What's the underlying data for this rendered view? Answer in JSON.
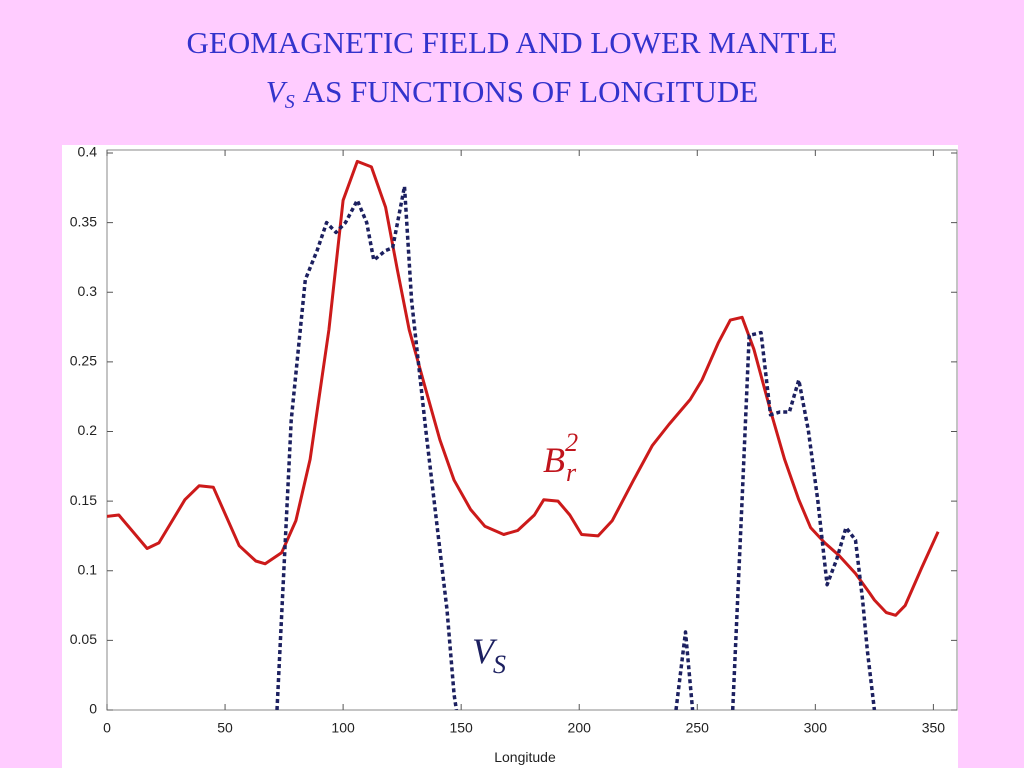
{
  "title_line1": "GEOMAGNETIC FIELD AND LOWER MANTLE",
  "title_line2": {
    "symbol": "V",
    "subscript": "S",
    "text": "AS FUNCTIONS OF LONGITUDE"
  },
  "chart_data": {
    "type": "line",
    "x_label": "Longitude",
    "xlim": [
      0,
      360
    ],
    "xticks": [
      0,
      50,
      100,
      150,
      200,
      250,
      300,
      350
    ],
    "ylim": [
      0,
      0.4
    ],
    "yticks": [
      0,
      0.05,
      0.1,
      0.15,
      0.2,
      0.25,
      0.3,
      0.35,
      0.4
    ],
    "annotations": [
      {
        "symbol": "B",
        "subscript": "r",
        "superscript": "2",
        "color": "#c0141c"
      },
      {
        "symbol": "V",
        "subscript": "S",
        "color": "#1c2060"
      }
    ],
    "series": [
      {
        "style": "solid",
        "color": "#cc1a1a",
        "x": [
          0,
          5,
          17,
          22,
          33,
          39,
          45,
          56,
          63,
          67,
          74,
          80,
          86,
          94,
          100,
          106,
          112,
          118,
          123,
          128,
          135,
          141,
          147,
          154,
          160,
          168,
          174,
          181,
          185,
          191,
          196,
          201,
          208,
          214,
          223,
          231,
          238,
          247,
          252,
          259,
          264,
          269,
          274,
          281,
          287,
          293,
          298,
          304,
          310,
          317,
          323,
          325,
          330,
          334,
          338,
          345,
          352
        ],
        "values": [
          0.139,
          0.14,
          0.116,
          0.12,
          0.151,
          0.161,
          0.16,
          0.118,
          0.107,
          0.105,
          0.113,
          0.136,
          0.18,
          0.273,
          0.366,
          0.394,
          0.39,
          0.361,
          0.316,
          0.273,
          0.23,
          0.194,
          0.165,
          0.144,
          0.132,
          0.126,
          0.129,
          0.14,
          0.151,
          0.15,
          0.14,
          0.126,
          0.125,
          0.136,
          0.165,
          0.19,
          0.205,
          0.223,
          0.237,
          0.264,
          0.28,
          0.282,
          0.259,
          0.215,
          0.18,
          0.151,
          0.131,
          0.12,
          0.111,
          0.098,
          0.084,
          0.079,
          0.07,
          0.068,
          0.075,
          0.102,
          0.128
        ]
      },
      {
        "style": "dashed",
        "color": "#1c2060",
        "x": [
          72,
          78,
          84,
          89,
          93,
          97,
          101,
          106,
          110,
          113,
          118,
          121,
          126,
          129,
          135,
          140,
          144,
          147,
          148,
          null,
          241,
          245,
          248,
          null,
          265,
          269,
          272,
          277,
          281,
          285,
          289,
          293,
          297,
          301,
          305,
          309,
          313,
          317,
          320,
          322,
          325
        ],
        "values": [
          0,
          0.208,
          0.309,
          0.33,
          0.35,
          0.343,
          0.35,
          0.366,
          0.35,
          0.323,
          0.33,
          0.332,
          0.376,
          0.294,
          0.201,
          0.129,
          0.072,
          0.011,
          0,
          null,
          0,
          0.056,
          0,
          null,
          0,
          0.151,
          0.269,
          0.271,
          0.212,
          0.214,
          0.214,
          0.237,
          0.201,
          0.151,
          0.09,
          0.108,
          0.131,
          0.122,
          0.079,
          0.043,
          0
        ]
      }
    ]
  }
}
